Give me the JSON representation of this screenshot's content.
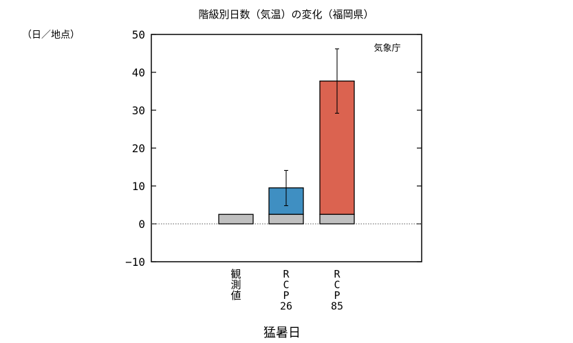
{
  "chart_data": {
    "type": "bar",
    "title": "階級別日数（気温）の変化（福岡県）",
    "ylabel": "（日／地点）",
    "xlabel": "猛暑日",
    "source": "気象庁",
    "ylim": [
      -10,
      50
    ],
    "yticks": [
      -10,
      0,
      10,
      20,
      30,
      40,
      50
    ],
    "grid": false,
    "baseline_style": "dotted",
    "categories": [
      "観測値",
      "RCP26",
      "RCP85"
    ],
    "category_labels": [
      [
        "観",
        "測",
        "値"
      ],
      [
        "R",
        "C",
        "P",
        "26"
      ],
      [
        "R",
        "C",
        "P",
        "85"
      ]
    ],
    "observed_value": 2.5,
    "series": [
      {
        "values": [
          2.5,
          2.5,
          2.5
        ],
        "color": "#c0c0c0"
      },
      {
        "values": [
          0,
          7.0,
          35.2
        ],
        "color_by_category": [
          "#c0c0c0",
          "#3f8fc2",
          "#db6350"
        ]
      }
    ],
    "totals": [
      2.5,
      9.5,
      37.7
    ],
    "error_bars": [
      null,
      [
        4.8,
        14.1
      ],
      [
        29.2,
        46.2
      ]
    ]
  }
}
